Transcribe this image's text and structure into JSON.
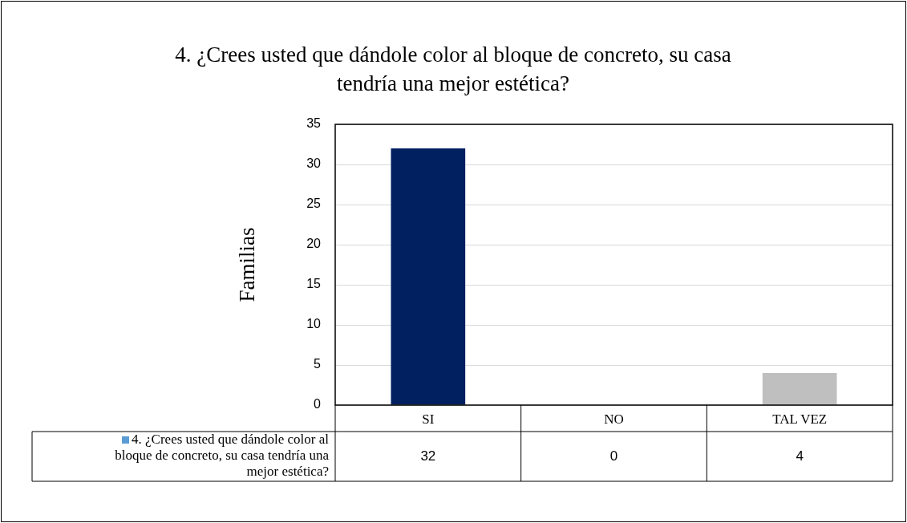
{
  "chart_data": {
    "type": "bar",
    "title": "4. ¿Crees usted que dándole color al bloque de concreto, su casa tendría una mejor estética?",
    "ylabel": "Familias",
    "categories": [
      "SI",
      "NO",
      "TAL VEZ"
    ],
    "series": [
      {
        "name": "4. ¿Crees usted que dándole color al bloque de concreto, su casa tendría una mejor estética?",
        "color": "#5b9bd5",
        "colors": [
          "#002060",
          "#5b9bd5",
          "#bfbfbf"
        ],
        "values": [
          32,
          0,
          4
        ]
      }
    ],
    "ylim": [
      0,
      35
    ],
    "yticks": [
      0,
      5,
      10,
      15,
      20,
      25,
      30,
      35
    ],
    "grid": "y",
    "legend": "bottom",
    "data_labels": true
  }
}
